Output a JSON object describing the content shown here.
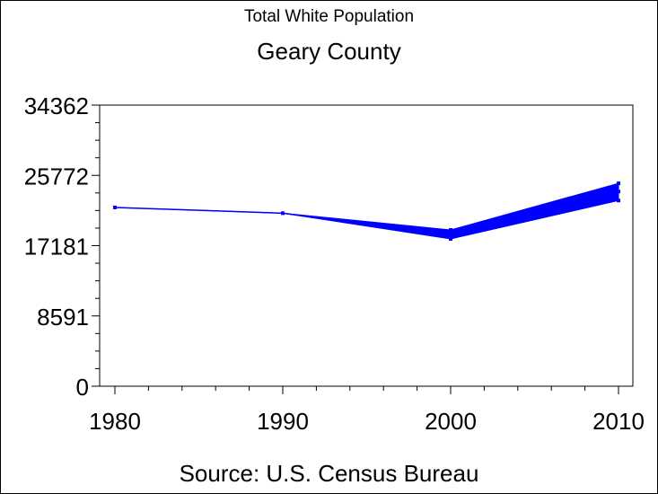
{
  "chart_data": {
    "type": "line",
    "title": "Total White Population",
    "subtitle": "Geary County",
    "footnote": "Source: U.S. Census Bureau",
    "x": [
      1980,
      1990,
      2000,
      2010
    ],
    "xticks": [
      "1980",
      "1990",
      "2000",
      "2010"
    ],
    "xlim": [
      1980,
      2010
    ],
    "yticks": [
      "0",
      "8591",
      "17181",
      "25772",
      "34362"
    ],
    "ylim": [
      0,
      34362
    ],
    "grid": false,
    "line_color": "#0000ff",
    "series": [
      {
        "values": [
          21850,
          21150,
          18500,
          23800
        ]
      }
    ],
    "band": {
      "lower": [
        21850,
        21150,
        18000,
        22700
      ],
      "upper": [
        21850,
        21150,
        19100,
        24800
      ]
    }
  }
}
